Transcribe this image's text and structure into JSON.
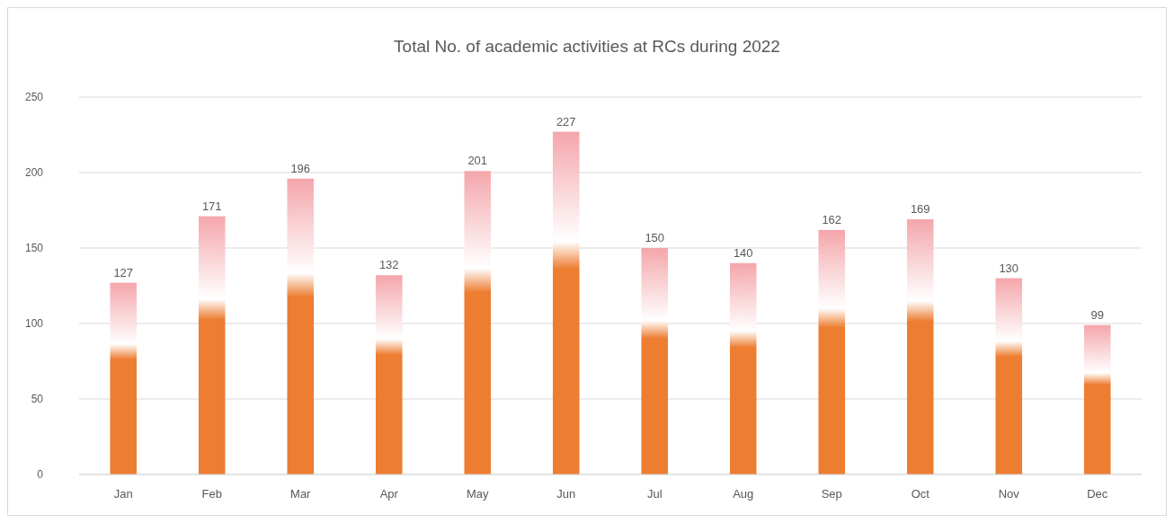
{
  "chart_data": {
    "type": "bar",
    "title": "Total No. of academic activities at RCs during 2022",
    "categories": [
      "Jan",
      "Feb",
      "Mar",
      "Apr",
      "May",
      "Jun",
      "Jul",
      "Aug",
      "Sep",
      "Oct",
      "Nov",
      "Dec"
    ],
    "values": [
      127,
      171,
      196,
      132,
      201,
      227,
      150,
      140,
      162,
      169,
      130,
      99
    ],
    "color": "#ed7d31",
    "ylim": [
      0,
      250
    ],
    "yticks": [
      0,
      50,
      100,
      150,
      200,
      250
    ],
    "grid": "y",
    "data_labels": true
  }
}
